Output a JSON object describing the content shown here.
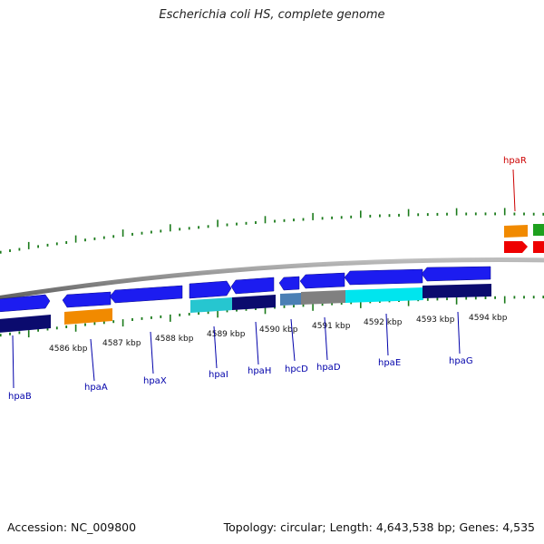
{
  "title": "Escherichia coli HS, complete genome",
  "footer": {
    "accession": "Accession: NC_009800",
    "summary": "Topology: circular; Length: 4,643,538 bp; Genes: 4,535"
  },
  "colors": {
    "blue": "#1c1cf0",
    "navy": "#0b0b6e",
    "orange": "#f18a00",
    "cyan": "#00e5ee",
    "teal": "#26c6d0",
    "gray": "#808080",
    "steel": "#4a7fb5",
    "red": "#ee0000",
    "green": "#1ea01e",
    "backbone": "#8c8c8c",
    "tick": "#1a7a1a",
    "label_blue": "#0000aa",
    "label_red": "#cc0000"
  },
  "scale_labels": [
    "4586 kbp",
    "4587 kbp",
    "4588 kbp",
    "4589 kbp",
    "4590 kbp",
    "4591 kbp",
    "4592 kbp",
    "4593 kbp",
    "4594 kbp"
  ],
  "gene_labels": [
    {
      "name": "hpaB",
      "color": "label_blue"
    },
    {
      "name": "hpaA",
      "color": "label_blue"
    },
    {
      "name": "hpaX",
      "color": "label_blue"
    },
    {
      "name": "hpaI",
      "color": "label_blue"
    },
    {
      "name": "hpaH",
      "color": "label_blue"
    },
    {
      "name": "hpcD",
      "color": "label_blue"
    },
    {
      "name": "hpaD",
      "color": "label_blue"
    },
    {
      "name": "hpaE",
      "color": "label_blue"
    },
    {
      "name": "hpaG",
      "color": "label_blue"
    },
    {
      "name": "hpaR",
      "color": "label_red"
    }
  ]
}
